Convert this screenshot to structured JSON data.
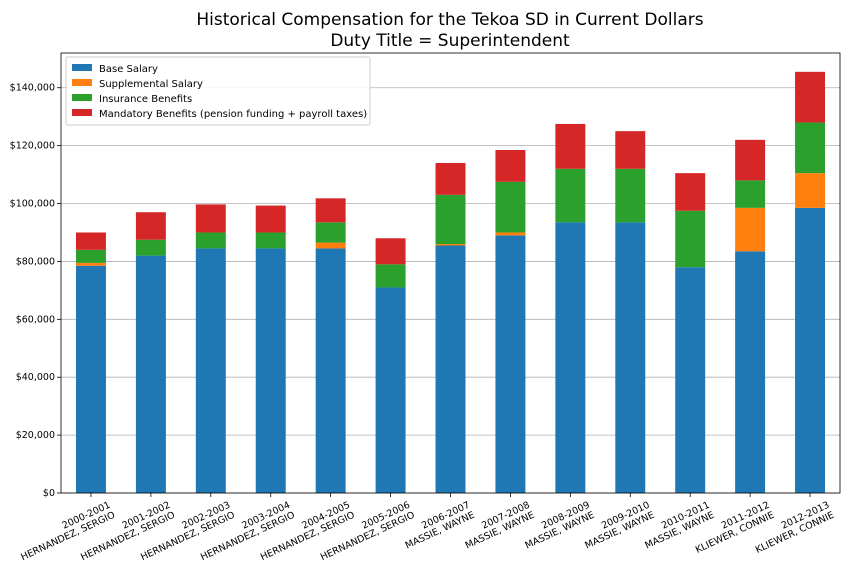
{
  "chart_data": {
    "type": "bar",
    "stacked": true,
    "title": "Historical Compensation for the Tekoa SD in Current Dollars",
    "subtitle": "Duty Title = Superintendent",
    "xlabel": "",
    "ylabel": "",
    "ylim": [
      0,
      152000
    ],
    "yticks": [
      0,
      20000,
      40000,
      60000,
      80000,
      100000,
      120000,
      140000
    ],
    "ytick_labels": [
      "$0",
      "$20,000",
      "$40,000",
      "$60,000",
      "$80,000",
      "$100,000",
      "$120,000",
      "$140,000"
    ],
    "grid": "horizontal",
    "legend_position": "top-left",
    "categories": [
      [
        "2000-2001",
        "HERNANDEZ, SERGIO"
      ],
      [
        "2001-2002",
        "HERNANDEZ, SERGIO"
      ],
      [
        "2002-2003",
        "HERNANDEZ, SERGIO"
      ],
      [
        "2003-2004",
        "HERNANDEZ, SERGIO"
      ],
      [
        "2004-2005",
        "HERNANDEZ, SERGIO"
      ],
      [
        "2005-2006",
        "HERNANDEZ, SERGIO"
      ],
      [
        "2006-2007",
        "MASSIE, WAYNE"
      ],
      [
        "2007-2008",
        "MASSIE, WAYNE"
      ],
      [
        "2008-2009",
        "MASSIE, WAYNE"
      ],
      [
        "2009-2010",
        "MASSIE, WAYNE"
      ],
      [
        "2010-2011",
        "MASSIE, WAYNE"
      ],
      [
        "2011-2012",
        "KLIEWER, CONNIE"
      ],
      [
        "2012-2013",
        "KLIEWER, CONNIE"
      ]
    ],
    "series": [
      {
        "name": "Base Salary",
        "color": "#1f77b4",
        "values": [
          78500,
          82000,
          84500,
          84500,
          84500,
          71000,
          85500,
          89000,
          93500,
          93500,
          78000,
          83500,
          98500
        ]
      },
      {
        "name": "Supplemental Salary",
        "color": "#ff7f0e",
        "values": [
          1000,
          0,
          0,
          0,
          2000,
          0,
          500,
          1000,
          0,
          0,
          0,
          15000,
          12000
        ]
      },
      {
        "name": "Insurance Benefits",
        "color": "#2ca02c",
        "values": [
          4500,
          5500,
          5500,
          5500,
          7000,
          8000,
          17000,
          17500,
          18500,
          18500,
          19500,
          9500,
          17500
        ]
      },
      {
        "name": "Mandatory Benefits (pension funding + payroll taxes)",
        "color": "#d62728",
        "values": [
          6000,
          9500,
          9700,
          9300,
          8300,
          9000,
          11000,
          11000,
          15500,
          13000,
          13000,
          14000,
          17500
        ]
      }
    ]
  }
}
